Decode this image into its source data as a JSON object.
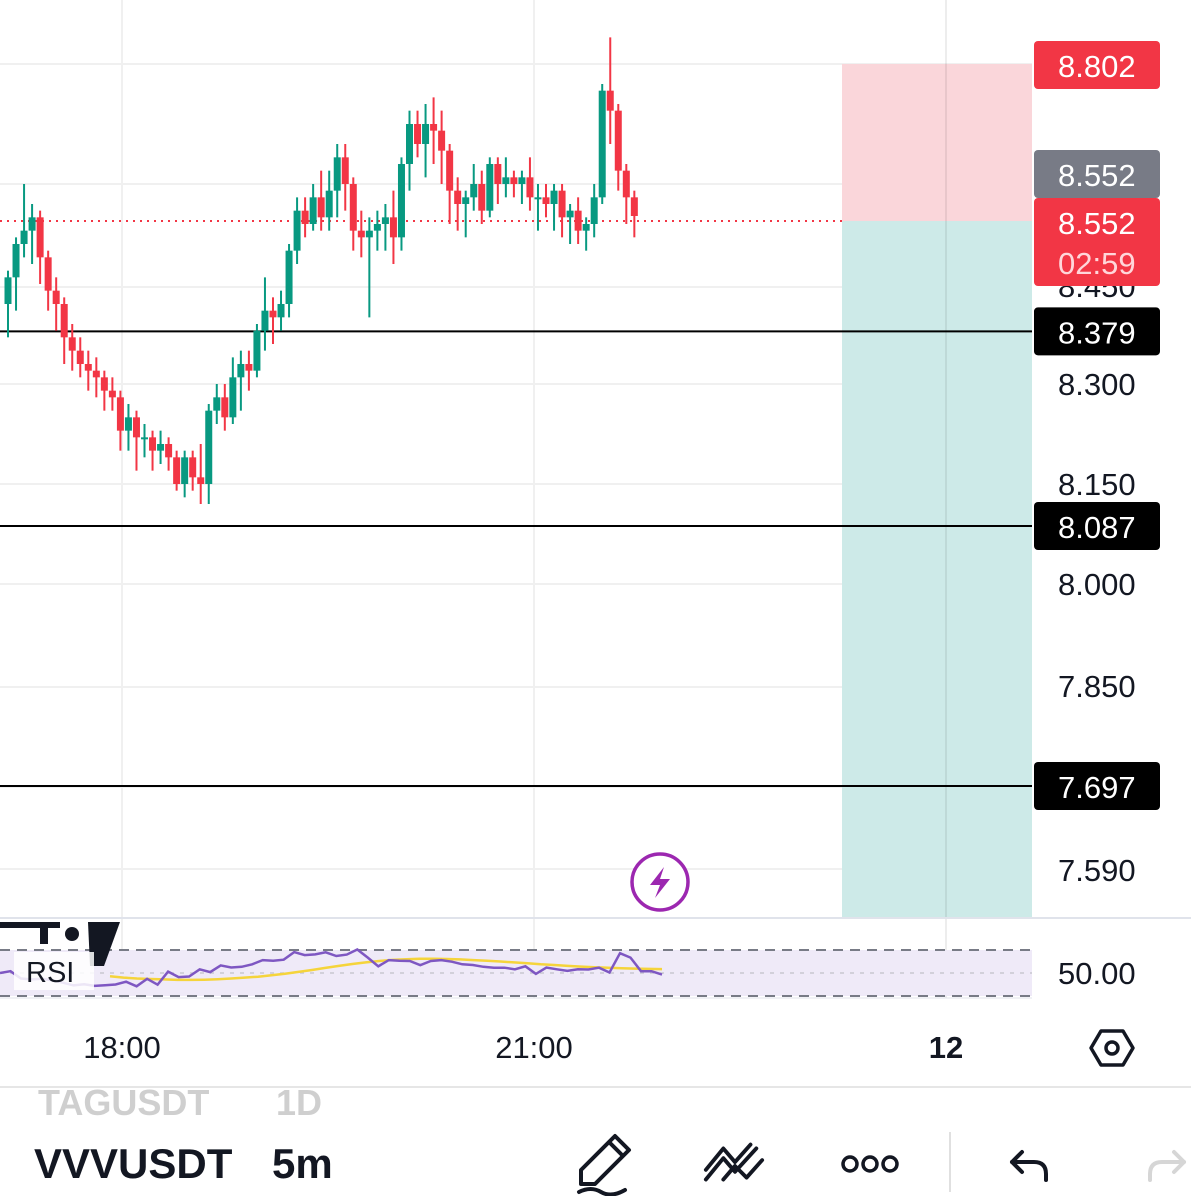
{
  "chart_data": {
    "type": "candlestick",
    "symbol": "VVVUSDT",
    "interval": "5m",
    "x_ticks": [
      "18:00",
      "21:00",
      "12"
    ],
    "y_ticks": [
      "8.450",
      "8.300",
      "8.150",
      "8.000",
      "7.850",
      "7.590"
    ],
    "candles": [
      [
        8.42,
        8.47,
        8.37,
        8.46
      ],
      [
        8.46,
        8.52,
        8.41,
        8.51
      ],
      [
        8.51,
        8.6,
        8.49,
        8.53
      ],
      [
        8.53,
        8.57,
        8.48,
        8.55
      ],
      [
        8.55,
        8.56,
        8.45,
        8.49
      ],
      [
        8.49,
        8.5,
        8.41,
        8.44
      ],
      [
        8.44,
        8.46,
        8.38,
        8.42
      ],
      [
        8.42,
        8.43,
        8.33,
        8.37
      ],
      [
        8.37,
        8.39,
        8.32,
        8.35
      ],
      [
        8.35,
        8.37,
        8.31,
        8.33
      ],
      [
        8.33,
        8.35,
        8.29,
        8.32
      ],
      [
        8.32,
        8.34,
        8.28,
        8.31
      ],
      [
        8.31,
        8.32,
        8.26,
        8.29
      ],
      [
        8.29,
        8.31,
        8.26,
        8.28
      ],
      [
        8.28,
        8.29,
        8.2,
        8.23
      ],
      [
        8.23,
        8.27,
        8.2,
        8.25
      ],
      [
        8.25,
        8.26,
        8.17,
        8.22
      ],
      [
        8.22,
        8.24,
        8.19,
        8.22
      ],
      [
        8.22,
        8.23,
        8.17,
        8.2
      ],
      [
        8.2,
        8.23,
        8.18,
        8.21
      ],
      [
        8.21,
        8.22,
        8.17,
        8.19
      ],
      [
        8.19,
        8.2,
        8.14,
        8.15
      ],
      [
        8.15,
        8.2,
        8.13,
        8.19
      ],
      [
        8.19,
        8.2,
        8.14,
        8.16
      ],
      [
        8.16,
        8.21,
        8.12,
        8.15
      ],
      [
        8.15,
        8.27,
        8.12,
        8.26
      ],
      [
        8.26,
        8.3,
        8.24,
        8.28
      ],
      [
        8.28,
        8.3,
        8.23,
        8.25
      ],
      [
        8.25,
        8.34,
        8.24,
        8.31
      ],
      [
        8.31,
        8.35,
        8.26,
        8.33
      ],
      [
        8.33,
        8.35,
        8.29,
        8.32
      ],
      [
        8.32,
        8.39,
        8.31,
        8.38
      ],
      [
        8.38,
        8.46,
        8.35,
        8.41
      ],
      [
        8.41,
        8.43,
        8.36,
        8.4
      ],
      [
        8.4,
        8.44,
        8.38,
        8.42
      ],
      [
        8.42,
        8.51,
        8.4,
        8.5
      ],
      [
        8.5,
        8.58,
        8.48,
        8.56
      ],
      [
        8.56,
        8.58,
        8.52,
        8.54
      ],
      [
        8.54,
        8.6,
        8.53,
        8.58
      ],
      [
        8.58,
        8.62,
        8.53,
        8.55
      ],
      [
        8.55,
        8.62,
        8.53,
        8.59
      ],
      [
        8.59,
        8.66,
        8.55,
        8.64
      ],
      [
        8.64,
        8.66,
        8.56,
        8.6
      ],
      [
        8.6,
        8.61,
        8.5,
        8.53
      ],
      [
        8.53,
        8.56,
        8.49,
        8.52
      ],
      [
        8.52,
        8.55,
        8.4,
        8.53
      ],
      [
        8.53,
        8.56,
        8.5,
        8.54
      ],
      [
        8.54,
        8.57,
        8.5,
        8.55
      ],
      [
        8.55,
        8.59,
        8.48,
        8.52
      ],
      [
        8.52,
        8.64,
        8.5,
        8.63
      ],
      [
        8.63,
        8.71,
        8.59,
        8.69
      ],
      [
        8.69,
        8.71,
        8.64,
        8.66
      ],
      [
        8.66,
        8.72,
        8.61,
        8.69
      ],
      [
        8.69,
        8.73,
        8.63,
        8.68
      ],
      [
        8.68,
        8.71,
        8.6,
        8.65
      ],
      [
        8.65,
        8.66,
        8.54,
        8.59
      ],
      [
        8.59,
        8.61,
        8.53,
        8.57
      ],
      [
        8.57,
        8.59,
        8.52,
        8.58
      ],
      [
        8.58,
        8.63,
        8.56,
        8.6
      ],
      [
        8.6,
        8.62,
        8.54,
        8.56
      ],
      [
        8.56,
        8.64,
        8.55,
        8.63
      ],
      [
        8.63,
        8.64,
        8.57,
        8.6
      ],
      [
        8.6,
        8.64,
        8.58,
        8.61
      ],
      [
        8.61,
        8.62,
        8.58,
        8.6
      ],
      [
        8.6,
        8.62,
        8.57,
        8.61
      ],
      [
        8.61,
        8.64,
        8.56,
        8.58
      ],
      [
        8.58,
        8.6,
        8.53,
        8.58
      ],
      [
        8.58,
        8.6,
        8.55,
        8.57
      ],
      [
        8.57,
        8.6,
        8.53,
        8.59
      ],
      [
        8.59,
        8.6,
        8.52,
        8.55
      ],
      [
        8.55,
        8.57,
        8.51,
        8.56
      ],
      [
        8.56,
        8.58,
        8.51,
        8.53
      ],
      [
        8.53,
        8.55,
        8.5,
        8.54
      ],
      [
        8.54,
        8.6,
        8.52,
        8.58
      ],
      [
        8.58,
        8.75,
        8.57,
        8.74
      ],
      [
        8.74,
        8.82,
        8.66,
        8.71
      ],
      [
        8.71,
        8.72,
        8.59,
        8.62
      ],
      [
        8.62,
        8.63,
        8.54,
        8.58
      ],
      [
        8.58,
        8.59,
        8.52,
        8.552
      ]
    ],
    "price_scale_labels": {
      "stop_loss": "8.802",
      "last_price": "8.552",
      "current_price": "8.552",
      "countdown": "02:59"
    },
    "horizontal_lines": [
      "8.379",
      "8.087",
      "7.697"
    ],
    "rsi": {
      "label": "RSI",
      "y_tick": "50.00",
      "rsi_values": [
        50.0,
        50.8,
        47.6,
        47.2,
        47.5,
        46.8,
        45.8,
        44.6,
        45.1,
        44.4,
        44.7,
        45.0,
        46.2,
        44.2,
        47.5,
        44.9,
        50.6,
        48.2,
        48.5,
        51.6,
        50.4,
        53.3,
        52.4,
        52.7,
        53.8,
        55.6,
        55.3,
        55.8,
        59.1,
        57.8,
        58.1,
        59.0,
        57.4,
        58.0,
        60.2,
        56.7,
        52.9,
        55.6,
        55.3,
        55.2,
        53.4,
        55.2,
        55.6,
        54.9,
        53.8,
        53.5,
        52.7,
        52.3,
        52.3,
        51.6,
        52.9,
        49.6,
        52.4,
        51.6,
        50.9,
        51.6,
        51.5,
        52.3,
        50.2,
        58.6,
        56.7,
        50.8,
        50.8,
        49.3
      ],
      "ma_values": [
        48.6,
        48.0,
        47.6,
        47.4,
        47.2,
        47.0,
        47.0,
        47.1,
        47.3,
        47.6,
        48.0,
        48.4,
        49.0,
        49.7,
        50.5,
        51.3,
        52.2,
        53.1,
        53.9,
        54.6,
        55.2,
        55.7,
        56.0,
        56.2,
        56.2,
        56.1,
        55.9,
        55.6,
        55.3,
        55.0,
        54.6,
        54.2,
        53.8,
        53.5,
        53.1,
        52.8,
        52.5,
        52.3,
        52.1,
        51.9,
        51.8,
        51.7
      ]
    }
  },
  "colors": {
    "up": "#089981",
    "down": "#f23645",
    "take_profit_zone": "#cdeae8",
    "stop_loss_zone": "#fad6da",
    "rsi_line": "#7e57c2",
    "rsi_ma": "#f5d43b",
    "rsi_band": "#efeaf8",
    "grid": "#f0f0f0",
    "line_tag": "#000000",
    "last_price_tag": "#787b86",
    "accent": "#9c27b0"
  },
  "bottom_bar": {
    "ghost_symbol": "TAGUSDT",
    "ghost_interval": "1D",
    "symbol": "VVVUSDT",
    "interval": "5m"
  },
  "icons": [
    "lightning-icon",
    "settings-hexagon-icon",
    "pencil-draw-icon",
    "indicators-icon",
    "more-dots-icon",
    "undo-icon",
    "redo-icon"
  ]
}
